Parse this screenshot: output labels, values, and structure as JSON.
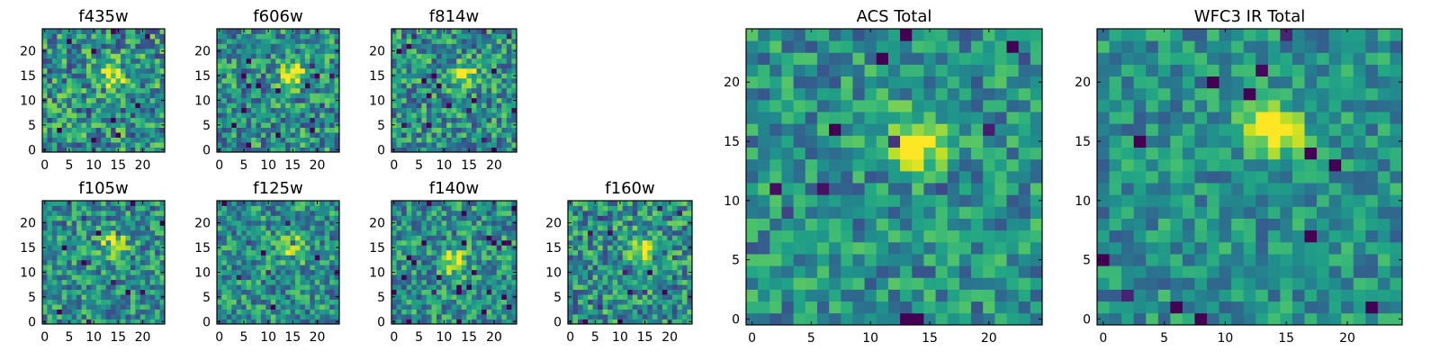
{
  "chart_data": [
    {
      "type": "heatmap",
      "title": "f435w",
      "grid_size": 25,
      "xlim": [
        0,
        24
      ],
      "ylim": [
        0,
        24
      ],
      "xticks": [
        0,
        5,
        10,
        15,
        20
      ],
      "yticks": [
        0,
        5,
        10,
        15,
        20
      ],
      "colormap": "viridis",
      "peak": [
        14,
        15
      ],
      "noise": 0.55,
      "seed": 11
    },
    {
      "type": "heatmap",
      "title": "f606w",
      "grid_size": 25,
      "xlim": [
        0,
        24
      ],
      "ylim": [
        0,
        24
      ],
      "xticks": [
        0,
        5,
        10,
        15,
        20
      ],
      "yticks": [
        0,
        5,
        10,
        15,
        20
      ],
      "colormap": "viridis",
      "peak": [
        15,
        15
      ],
      "noise": 0.5,
      "seed": 23
    },
    {
      "type": "heatmap",
      "title": "f814w",
      "grid_size": 25,
      "xlim": [
        0,
        24
      ],
      "ylim": [
        0,
        24
      ],
      "xticks": [
        0,
        5,
        10,
        15,
        20
      ],
      "yticks": [
        0,
        5,
        10,
        15,
        20
      ],
      "colormap": "viridis",
      "peak": [
        14,
        15
      ],
      "noise": 0.5,
      "seed": 37
    },
    {
      "type": "heatmap",
      "title": "f105w",
      "grid_size": 25,
      "xlim": [
        0,
        24
      ],
      "ylim": [
        0,
        24
      ],
      "xticks": [
        0,
        5,
        10,
        15,
        20
      ],
      "yticks": [
        0,
        5,
        10,
        15,
        20
      ],
      "colormap": "viridis",
      "peak": [
        14,
        16
      ],
      "noise": 0.45,
      "seed": 41
    },
    {
      "type": "heatmap",
      "title": "f125w",
      "grid_size": 25,
      "xlim": [
        0,
        24
      ],
      "ylim": [
        0,
        24
      ],
      "xticks": [
        0,
        5,
        10,
        15,
        20
      ],
      "yticks": [
        0,
        5,
        10,
        15,
        20
      ],
      "colormap": "viridis",
      "peak": [
        15,
        15
      ],
      "noise": 0.45,
      "seed": 53
    },
    {
      "type": "heatmap",
      "title": "f140w",
      "grid_size": 25,
      "xlim": [
        0,
        24
      ],
      "ylim": [
        0,
        24
      ],
      "xticks": [
        0,
        5,
        10,
        15,
        20
      ],
      "yticks": [
        0,
        5,
        10,
        15,
        20
      ],
      "colormap": "viridis",
      "peak": [
        12,
        12
      ],
      "noise": 0.45,
      "seed": 67
    },
    {
      "type": "heatmap",
      "title": "f160w",
      "grid_size": 25,
      "xlim": [
        0,
        24
      ],
      "ylim": [
        0,
        24
      ],
      "xticks": [
        0,
        5,
        10,
        15,
        20
      ],
      "yticks": [
        0,
        5,
        10,
        15,
        20
      ],
      "colormap": "viridis",
      "peak": [
        14,
        15
      ],
      "noise": 0.5,
      "seed": 79
    },
    {
      "type": "heatmap",
      "title": "ACS Total",
      "grid_size": 25,
      "xlim": [
        0,
        24
      ],
      "ylim": [
        0,
        24
      ],
      "xticks": [
        0,
        5,
        10,
        15,
        20
      ],
      "yticks": [
        0,
        5,
        10,
        15,
        20
      ],
      "colormap": "viridis",
      "peak": [
        14,
        15
      ],
      "noise": 0.4,
      "seed": 97
    },
    {
      "type": "heatmap",
      "title": "WFC3 IR Total",
      "grid_size": 25,
      "xlim": [
        0,
        24
      ],
      "ylim": [
        0,
        24
      ],
      "xticks": [
        0,
        5,
        10,
        15,
        20
      ],
      "yticks": [
        0,
        5,
        10,
        15,
        20
      ],
      "colormap": "viridis",
      "peak": [
        14,
        16
      ],
      "noise": 0.35,
      "seed": 113
    }
  ]
}
